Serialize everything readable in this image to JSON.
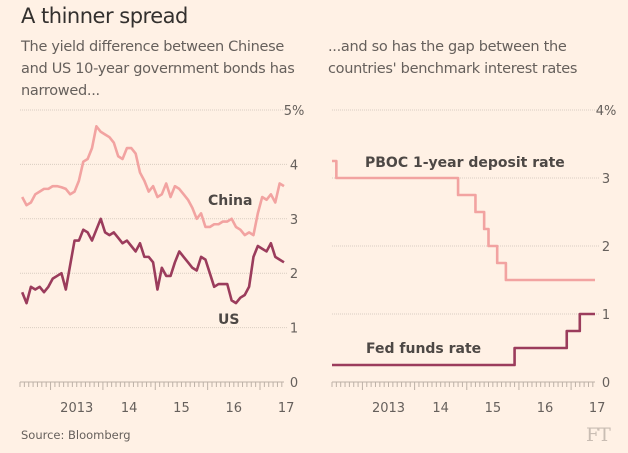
{
  "title": "A thinner spread",
  "source": "Source: Bloomberg",
  "logo": "FT",
  "colors": {
    "background": "#fff1e5",
    "china": "#f2a3a1",
    "us": "#9b3c5c"
  },
  "chart_data": [
    {
      "type": "line",
      "subtitle": "The yield difference between Chinese and US 10-year government bonds has narrowed...",
      "x_ticks": [
        "2013",
        "14",
        "15",
        "16",
        "17"
      ],
      "y_ticks": [
        "5%",
        "4",
        "3",
        "2",
        "1",
        "0"
      ],
      "ylim": [
        0,
        5
      ],
      "xlim": [
        "2012-06",
        "2017-06"
      ],
      "grid": true,
      "series": [
        {
          "name": "China",
          "color": "#f2a3a1",
          "points": [
            [
              "2012-06",
              3.4
            ],
            [
              "2012-07",
              3.25
            ],
            [
              "2012-08",
              3.3
            ],
            [
              "2012-09",
              3.45
            ],
            [
              "2012-10",
              3.5
            ],
            [
              "2012-11",
              3.55
            ],
            [
              "2012-12",
              3.55
            ],
            [
              "2013-01",
              3.6
            ],
            [
              "2013-02",
              3.6
            ],
            [
              "2013-03",
              3.58
            ],
            [
              "2013-04",
              3.55
            ],
            [
              "2013-05",
              3.45
            ],
            [
              "2013-06",
              3.5
            ],
            [
              "2013-07",
              3.7
            ],
            [
              "2013-08",
              4.05
            ],
            [
              "2013-09",
              4.1
            ],
            [
              "2013-10",
              4.3
            ],
            [
              "2013-11",
              4.7
            ],
            [
              "2013-12",
              4.6
            ],
            [
              "2014-01",
              4.55
            ],
            [
              "2014-02",
              4.5
            ],
            [
              "2014-03",
              4.4
            ],
            [
              "2014-04",
              4.15
            ],
            [
              "2014-05",
              4.1
            ],
            [
              "2014-06",
              4.3
            ],
            [
              "2014-07",
              4.3
            ],
            [
              "2014-08",
              4.2
            ],
            [
              "2014-09",
              3.85
            ],
            [
              "2014-10",
              3.7
            ],
            [
              "2014-11",
              3.5
            ],
            [
              "2014-12",
              3.6
            ],
            [
              "2015-01",
              3.4
            ],
            [
              "2015-02",
              3.45
            ],
            [
              "2015-03",
              3.65
            ],
            [
              "2015-04",
              3.4
            ],
            [
              "2015-05",
              3.6
            ],
            [
              "2015-06",
              3.55
            ],
            [
              "2015-07",
              3.45
            ],
            [
              "2015-08",
              3.35
            ],
            [
              "2015-09",
              3.2
            ],
            [
              "2015-10",
              3.0
            ],
            [
              "2015-11",
              3.1
            ],
            [
              "2015-12",
              2.85
            ],
            [
              "2016-01",
              2.85
            ],
            [
              "2016-02",
              2.9
            ],
            [
              "2016-03",
              2.9
            ],
            [
              "2016-04",
              2.95
            ],
            [
              "2016-05",
              2.95
            ],
            [
              "2016-06",
              3.0
            ],
            [
              "2016-07",
              2.85
            ],
            [
              "2016-08",
              2.8
            ],
            [
              "2016-09",
              2.7
            ],
            [
              "2016-10",
              2.75
            ],
            [
              "2016-11",
              2.7
            ],
            [
              "2016-12",
              3.1
            ],
            [
              "2017-01",
              3.4
            ],
            [
              "2017-02",
              3.35
            ],
            [
              "2017-03",
              3.45
            ],
            [
              "2017-04",
              3.3
            ],
            [
              "2017-05",
              3.65
            ],
            [
              "2017-06",
              3.6
            ]
          ]
        },
        {
          "name": "US",
          "color": "#9b3c5c",
          "points": [
            [
              "2012-06",
              1.65
            ],
            [
              "2012-07",
              1.45
            ],
            [
              "2012-08",
              1.75
            ],
            [
              "2012-09",
              1.7
            ],
            [
              "2012-10",
              1.75
            ],
            [
              "2012-11",
              1.65
            ],
            [
              "2012-12",
              1.75
            ],
            [
              "2013-01",
              1.9
            ],
            [
              "2013-02",
              1.95
            ],
            [
              "2013-03",
              2.0
            ],
            [
              "2013-04",
              1.7
            ],
            [
              "2013-05",
              2.15
            ],
            [
              "2013-06",
              2.6
            ],
            [
              "2013-07",
              2.6
            ],
            [
              "2013-08",
              2.8
            ],
            [
              "2013-09",
              2.75
            ],
            [
              "2013-10",
              2.6
            ],
            [
              "2013-11",
              2.8
            ],
            [
              "2013-12",
              3.0
            ],
            [
              "2014-01",
              2.75
            ],
            [
              "2014-02",
              2.7
            ],
            [
              "2014-03",
              2.75
            ],
            [
              "2014-04",
              2.65
            ],
            [
              "2014-05",
              2.55
            ],
            [
              "2014-06",
              2.6
            ],
            [
              "2014-07",
              2.5
            ],
            [
              "2014-08",
              2.4
            ],
            [
              "2014-09",
              2.55
            ],
            [
              "2014-10",
              2.3
            ],
            [
              "2014-11",
              2.3
            ],
            [
              "2014-12",
              2.2
            ],
            [
              "2015-01",
              1.7
            ],
            [
              "2015-02",
              2.1
            ],
            [
              "2015-03",
              1.95
            ],
            [
              "2015-04",
              1.95
            ],
            [
              "2015-05",
              2.2
            ],
            [
              "2015-06",
              2.4
            ],
            [
              "2015-07",
              2.3
            ],
            [
              "2015-08",
              2.2
            ],
            [
              "2015-09",
              2.1
            ],
            [
              "2015-10",
              2.05
            ],
            [
              "2015-11",
              2.3
            ],
            [
              "2015-12",
              2.25
            ],
            [
              "2016-01",
              2.0
            ],
            [
              "2016-02",
              1.75
            ],
            [
              "2016-03",
              1.8
            ],
            [
              "2016-04",
              1.8
            ],
            [
              "2016-05",
              1.8
            ],
            [
              "2016-06",
              1.5
            ],
            [
              "2016-07",
              1.45
            ],
            [
              "2016-08",
              1.55
            ],
            [
              "2016-09",
              1.6
            ],
            [
              "2016-10",
              1.75
            ],
            [
              "2016-11",
              2.3
            ],
            [
              "2016-12",
              2.5
            ],
            [
              "2017-01",
              2.45
            ],
            [
              "2017-02",
              2.4
            ],
            [
              "2017-03",
              2.55
            ],
            [
              "2017-04",
              2.3
            ],
            [
              "2017-05",
              2.25
            ],
            [
              "2017-06",
              2.2
            ]
          ]
        }
      ]
    },
    {
      "type": "line",
      "step": true,
      "subtitle": "...and so has the gap between the countries' benchmark interest rates",
      "x_ticks": [
        "2013",
        "14",
        "15",
        "16",
        "17"
      ],
      "y_ticks": [
        "4%",
        "3",
        "2",
        "1",
        "0"
      ],
      "ylim": [
        0,
        4
      ],
      "xlim": [
        "2012-06",
        "2017-06"
      ],
      "grid": true,
      "series": [
        {
          "name": "PBOC 1-year deposit rate",
          "color": "#f2a3a1",
          "points": [
            [
              "2012-06",
              3.25
            ],
            [
              "2012-07",
              3.0
            ],
            [
              "2014-11",
              2.75
            ],
            [
              "2015-03",
              2.5
            ],
            [
              "2015-05",
              2.25
            ],
            [
              "2015-06",
              2.0
            ],
            [
              "2015-08",
              1.75
            ],
            [
              "2015-10",
              1.5
            ],
            [
              "2017-06",
              1.5
            ]
          ]
        },
        {
          "name": "Fed funds rate",
          "color": "#9b3c5c",
          "points": [
            [
              "2012-06",
              0.25
            ],
            [
              "2015-12",
              0.5
            ],
            [
              "2016-12",
              0.75
            ],
            [
              "2017-03",
              1.0
            ],
            [
              "2017-06",
              1.0
            ]
          ]
        }
      ]
    }
  ]
}
